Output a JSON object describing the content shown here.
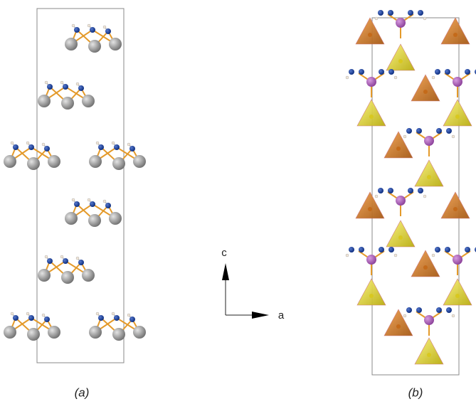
{
  "panels": [
    {
      "label": "(a)"
    },
    {
      "label": "(b)"
    }
  ],
  "axes": {
    "vertical": "c",
    "horizontal": "a"
  }
}
